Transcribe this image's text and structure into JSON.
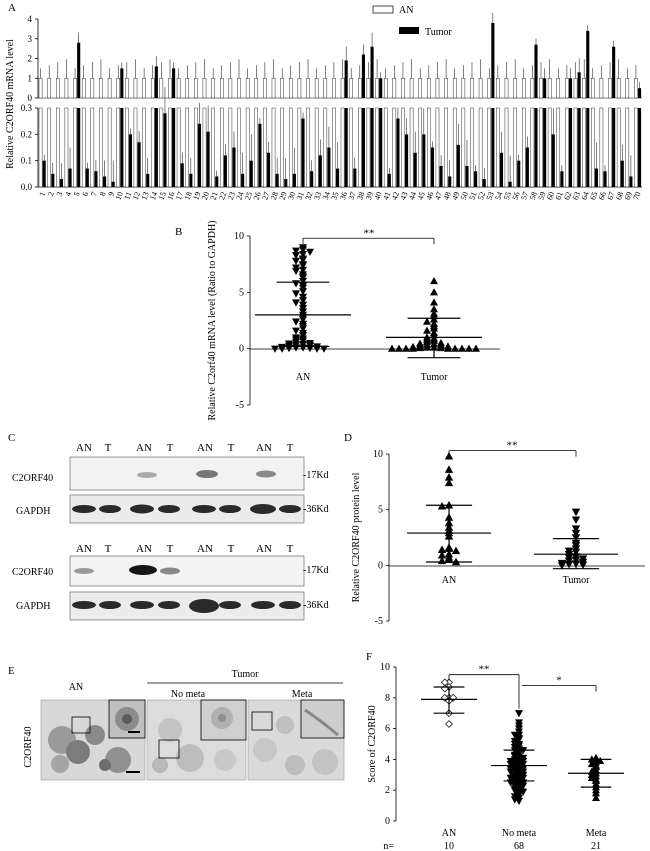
{
  "panels": {
    "A": "A",
    "B": "B",
    "C": "C",
    "D": "D",
    "E": "E",
    "F": "F"
  },
  "chart_data": [
    {
      "panel": "A",
      "type": "bar",
      "ylabel": "Relative C2ORF40 mRNA level",
      "legend": [
        "AN",
        "Tumor"
      ],
      "legend_position": "top-right",
      "categories": [
        "1",
        "2",
        "3",
        "4",
        "5",
        "6",
        "7",
        "8",
        "9",
        "10",
        "11",
        "12",
        "13",
        "14",
        "15",
        "16",
        "17",
        "18",
        "19",
        "20",
        "21",
        "22",
        "23",
        "24",
        "25",
        "26",
        "27",
        "28",
        "29",
        "30",
        "31",
        "32",
        "33",
        "34",
        "35",
        "36",
        "37",
        "38",
        "39",
        "40",
        "41",
        "42",
        "43",
        "44",
        "45",
        "46",
        "47",
        "48",
        "49",
        "50",
        "51",
        "52",
        "53",
        "54",
        "55",
        "56",
        "57",
        "58",
        "59",
        "60",
        "61",
        "62",
        "63",
        "64",
        "65",
        "66",
        "67",
        "68",
        "69",
        "70"
      ],
      "broken_axis": {
        "lower_ylim": [
          0,
          0.3
        ],
        "upper_ylim": [
          0,
          4
        ],
        "lower_ticks": [
          "0.0",
          "0.1",
          "0.2",
          "0.3"
        ],
        "upper_ticks": [
          "0",
          "1",
          "2",
          "3",
          "4"
        ]
      },
      "series": [
        {
          "name": "AN",
          "values": [
            1,
            1,
            1,
            1,
            1,
            1,
            1,
            1,
            1,
            1,
            1,
            1,
            1,
            1,
            1,
            1,
            1,
            1,
            1,
            1,
            1,
            1,
            1,
            1,
            1,
            1,
            1,
            1,
            1,
            1,
            1,
            1,
            1,
            1,
            1,
            1,
            1,
            1,
            1,
            1,
            1,
            1,
            1,
            1,
            1,
            1,
            1,
            1,
            1,
            1,
            1,
            1,
            1,
            1,
            1,
            1,
            1,
            1,
            1,
            1,
            1,
            1,
            1,
            1,
            1,
            1,
            1,
            1,
            1,
            1
          ]
        },
        {
          "name": "Tumor",
          "values": [
            0.1,
            0.05,
            0.03,
            0.07,
            2.8,
            0.07,
            0.06,
            0.04,
            0.02,
            1.5,
            0.2,
            0.17,
            0.05,
            1.6,
            0.28,
            1.5,
            0.09,
            0.05,
            0.24,
            0.21,
            0.04,
            0.12,
            0.15,
            0.05,
            0.1,
            0.24,
            0.13,
            0.05,
            0.03,
            0.05,
            0.26,
            0.06,
            0.12,
            0.15,
            0.07,
            1.9,
            0.07,
            2.2,
            2.6,
            1.0,
            0.05,
            0.26,
            0.2,
            0.13,
            0.2,
            0.15,
            0.08,
            0.04,
            0.16,
            0.08,
            0.06,
            0.03,
            3.8,
            0.13,
            0.02,
            0.1,
            0.15,
            2.7,
            1.0,
            0.2,
            0.06,
            1.0,
            1.3,
            3.4,
            0.07,
            0.06,
            2.6,
            0.1,
            0.04,
            0.5
          ]
        }
      ]
    },
    {
      "panel": "B",
      "type": "scatter",
      "ylabel": "Relative C2orf40 mRNA level (Ratio to GAPDH)",
      "ylim": [
        -5,
        10
      ],
      "yticks": [
        "-5",
        "0",
        "5",
        "10"
      ],
      "categories": [
        "AN",
        "Tumor"
      ],
      "significance": "**",
      "means": [
        3.0,
        1.0
      ],
      "sd_upper": [
        5.9,
        2.7
      ],
      "sd_lower": [
        0.2,
        -0.8
      ],
      "series": [
        {
          "group": "AN",
          "values": [
            9,
            8.8,
            8.7,
            8.6,
            8.4,
            8.3,
            8,
            7.9,
            7.8,
            7.5,
            7.4,
            7.2,
            7,
            6.9,
            6.6,
            6.4,
            6.3,
            6,
            5.8,
            5.6,
            5.4,
            5.1,
            4.9,
            4.6,
            4.3,
            4.1,
            3.9,
            3.6,
            3.3,
            3,
            2.8,
            2.6,
            2.4,
            2.2,
            2,
            1.8,
            1.6,
            1.4,
            1.2,
            1,
            0.9,
            0.8,
            0.7,
            0.6,
            0.5,
            0.45,
            0.4,
            0.35,
            0.3,
            0.25,
            0.2,
            0.15,
            0.1,
            0.1,
            0.05,
            0.05,
            0,
            0,
            0,
            0
          ]
        },
        {
          "group": "Tumor",
          "values": [
            6,
            5,
            4.1,
            3.5,
            3.1,
            2.9,
            2.6,
            2.4,
            2.2,
            2,
            1.8,
            1.6,
            1.4,
            1.2,
            1,
            0.9,
            0.8,
            0.7,
            0.6,
            0.5,
            0.45,
            0.4,
            0.35,
            0.3,
            0.25,
            0.2,
            0.15,
            0.1,
            0.1,
            0.05,
            0.05,
            0,
            0,
            0,
            0,
            0,
            0,
            0,
            0,
            0
          ]
        }
      ]
    },
    {
      "panel": "D",
      "type": "scatter",
      "ylabel": "Relative C2ORF40 protein level",
      "ylim": [
        -5,
        10
      ],
      "yticks": [
        "-5",
        "0",
        "5",
        "10"
      ],
      "categories": [
        "AN",
        "Tumor"
      ],
      "significance": "**",
      "means": [
        2.9,
        1.0
      ],
      "sd_upper": [
        5.4,
        2.4
      ],
      "sd_lower": [
        0.3,
        -0.3
      ],
      "series": [
        {
          "group": "AN",
          "values": [
            9.8,
            8.6,
            7.9,
            7.4,
            5.4,
            5.3,
            4.3,
            3.8,
            3.4,
            3.1,
            2.9,
            2.6,
            1.6,
            1.5,
            1.4,
            1.3,
            1.0,
            0.9,
            0.7,
            0.5,
            0.4,
            0.3
          ]
        },
        {
          "group": "Tumor",
          "values": [
            4.8,
            4.1,
            3.3,
            2.9,
            2.5,
            2.0,
            1.8,
            1.5,
            1.3,
            1.2,
            1.0,
            0.8,
            0.7,
            0.6,
            0.5,
            0.4,
            0.3,
            0.2,
            0.15,
            0.1,
            0.05,
            0.0
          ]
        }
      ]
    },
    {
      "panel": "F",
      "type": "scatter",
      "ylabel": "Score of C2ORF40",
      "ylim": [
        0,
        10
      ],
      "yticks": [
        "0",
        "2",
        "4",
        "6",
        "8",
        "10"
      ],
      "categories": [
        "AN",
        "No meta",
        "Meta"
      ],
      "n_label": "n=",
      "n_values": [
        "10",
        "68",
        "21"
      ],
      "significance": [
        "**",
        "*"
      ],
      "means": [
        7.9,
        3.6,
        3.1
      ],
      "sd_upper": [
        8.7,
        4.6,
        4.0
      ],
      "sd_lower": [
        7.0,
        2.6,
        2.2
      ],
      "series": [
        {
          "group": "AN",
          "values": [
            9,
            9,
            8.7,
            8.6,
            8,
            8,
            8,
            7.8,
            7,
            6.3
          ]
        },
        {
          "group": "No meta",
          "values": [
            7,
            6.4,
            6.2,
            6,
            5.8,
            5.6,
            5.6,
            5.4,
            5.3,
            5.2,
            5,
            5,
            4.9,
            4.8,
            4.7,
            4.6,
            4.6,
            4.5,
            4.4,
            4.3,
            4.2,
            4.2,
            4.1,
            4,
            4,
            3.9,
            3.9,
            3.8,
            3.8,
            3.7,
            3.7,
            3.6,
            3.6,
            3.5,
            3.5,
            3.4,
            3.4,
            3.3,
            3.3,
            3.2,
            3.2,
            3.1,
            3,
            3,
            2.9,
            2.9,
            2.8,
            2.8,
            2.7,
            2.7,
            2.6,
            2.6,
            2.5,
            2.5,
            2.4,
            2.3,
            2.3,
            2.2,
            2.1,
            2,
            2,
            1.9,
            1.8,
            1.7,
            1.6,
            1.5,
            1.4,
            1.3
          ]
        },
        {
          "group": "Meta",
          "values": [
            4.1,
            4,
            4,
            3.9,
            3.8,
            3.7,
            3.6,
            3.5,
            3.3,
            3.2,
            3.1,
            3,
            2.9,
            2.8,
            2.7,
            2.6,
            2.4,
            2.2,
            2.0,
            1.8,
            1.5
          ]
        }
      ]
    }
  ],
  "blots": {
    "top_lanes": [
      "AN",
      "T",
      "AN",
      "T",
      "AN",
      "T",
      "AN",
      "T"
    ],
    "bottom_lanes": [
      "AN",
      "T",
      "AN",
      "T",
      "AN",
      "T",
      "AN",
      "T"
    ],
    "row_labels": {
      "c2orf40": "C2ORF40",
      "gapdh": "GAPDH"
    },
    "sizes": {
      "c2orf40": "-17Kd",
      "gapdh": "-36Kd"
    }
  },
  "ihc": {
    "row_label": "C2ORF40",
    "an_label": "AN",
    "tumor_label": "Tumor",
    "no_meta_label": "No meta",
    "meta_label": "Meta"
  }
}
